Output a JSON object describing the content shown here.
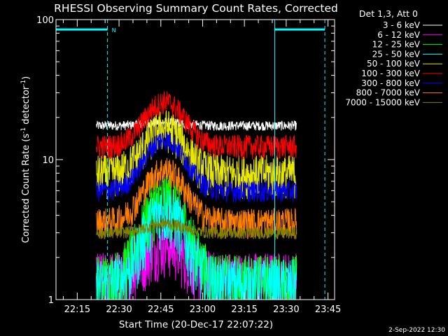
{
  "chart_data": {
    "type": "line",
    "title": "RHESSI Observing Summary Count Rates, Corrected",
    "xlabel": "Start Time (20-Dec-17 22:07:22)",
    "ylabel": "Corrected Count Rate (s⁻¹ detector⁻¹)",
    "ylabel_main": "Corrected Count Rate (s",
    "ylabel_sup1": "-1",
    "ylabel_mid": " detector",
    "ylabel_sup2": "-1",
    "ylabel_end": ")",
    "yscale": "log",
    "ylim": [
      1,
      100
    ],
    "xlim_minutes": [
      0,
      100
    ],
    "x_start": "22:07:22",
    "x_ticks": [
      {
        "label": "22:15",
        "min": 7.63
      },
      {
        "label": "22:30",
        "min": 22.63
      },
      {
        "label": "22:45",
        "min": 37.63
      },
      {
        "label": "23:00",
        "min": 52.63
      },
      {
        "label": "23:15",
        "min": 67.63
      },
      {
        "label": "23:30",
        "min": 82.63
      },
      {
        "label": "23:45",
        "min": 97.63
      }
    ],
    "y_ticks": [
      {
        "label": "1",
        "value": 1
      },
      {
        "label": "10",
        "value": 10
      },
      {
        "label": "100",
        "value": 100
      }
    ],
    "legend_header": "Det 1,3, Att 0",
    "legend_position": "right",
    "data_window_minutes": [
      14.5,
      86.5
    ],
    "series": [
      {
        "name": "3 - 6 keV",
        "color": "#ffffff",
        "base": 17.5,
        "peak": 18.5,
        "noise": 0.08
      },
      {
        "name": "6 - 12 keV",
        "color": "#ff00ff",
        "base": 1.5,
        "peak": 2.5,
        "noise": 0.45
      },
      {
        "name": "12 - 25 keV",
        "color": "#00ff00",
        "base": 1.4,
        "peak": 5.5,
        "noise": 0.5
      },
      {
        "name": "25 - 50 keV",
        "color": "#00ffff",
        "base": 1.3,
        "peak": 4.5,
        "noise": 0.5
      },
      {
        "name": "50 - 100 keV",
        "color": "#e8e800",
        "base": 8.0,
        "peak": 17.0,
        "noise": 0.35
      },
      {
        "name": "100 - 300 keV",
        "color": "#ff0000",
        "base": 12.5,
        "peak": 26.0,
        "noise": 0.2
      },
      {
        "name": "300 - 800 keV",
        "color": "#0000ff",
        "base": 6.0,
        "peak": 14.0,
        "noise": 0.18
      },
      {
        "name": "800 - 7000 keV",
        "color": "#ff8000",
        "base": 3.6,
        "peak": 8.5,
        "noise": 0.25
      },
      {
        "name": "7000 - 15000 keV",
        "color": "#808000",
        "base": 3.0,
        "peak": 3.5,
        "noise": 0.1
      }
    ],
    "flare_peak_minutes": 39,
    "flare_width_minutes": 9,
    "night_marker": "N",
    "markers": {
      "solid_lines_min": [
        0,
        78.5
      ],
      "dashed_lines_min": [
        18.5,
        96.5
      ],
      "saa_bars_min": [
        [
          0,
          18.5
        ],
        [
          78.5,
          96.5
        ]
      ],
      "saa_level": 85
    },
    "colors": {
      "background": "#000000",
      "axes": "#ffffff",
      "marker": "#00ffff"
    }
  },
  "footer": {
    "date": "2-Sep-2022 12:30"
  }
}
